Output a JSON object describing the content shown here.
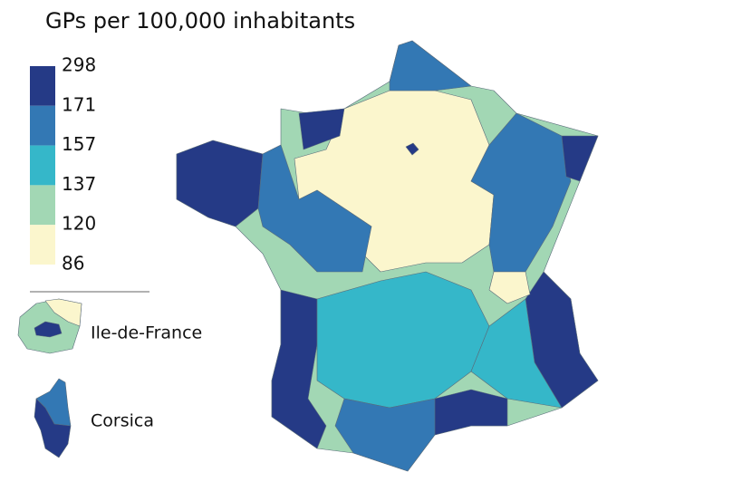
{
  "title": "GPs per 100,000  inhabitants",
  "legend": {
    "breaks": [
      298,
      171,
      157,
      137,
      120,
      86
    ],
    "colors": [
      "#253a86",
      "#3378b4",
      "#35b7c9",
      "#a2d7b4",
      "#fbf6cd"
    ]
  },
  "insets": [
    {
      "label": "Ile-de-France"
    },
    {
      "label": "Corsica"
    }
  ]
}
